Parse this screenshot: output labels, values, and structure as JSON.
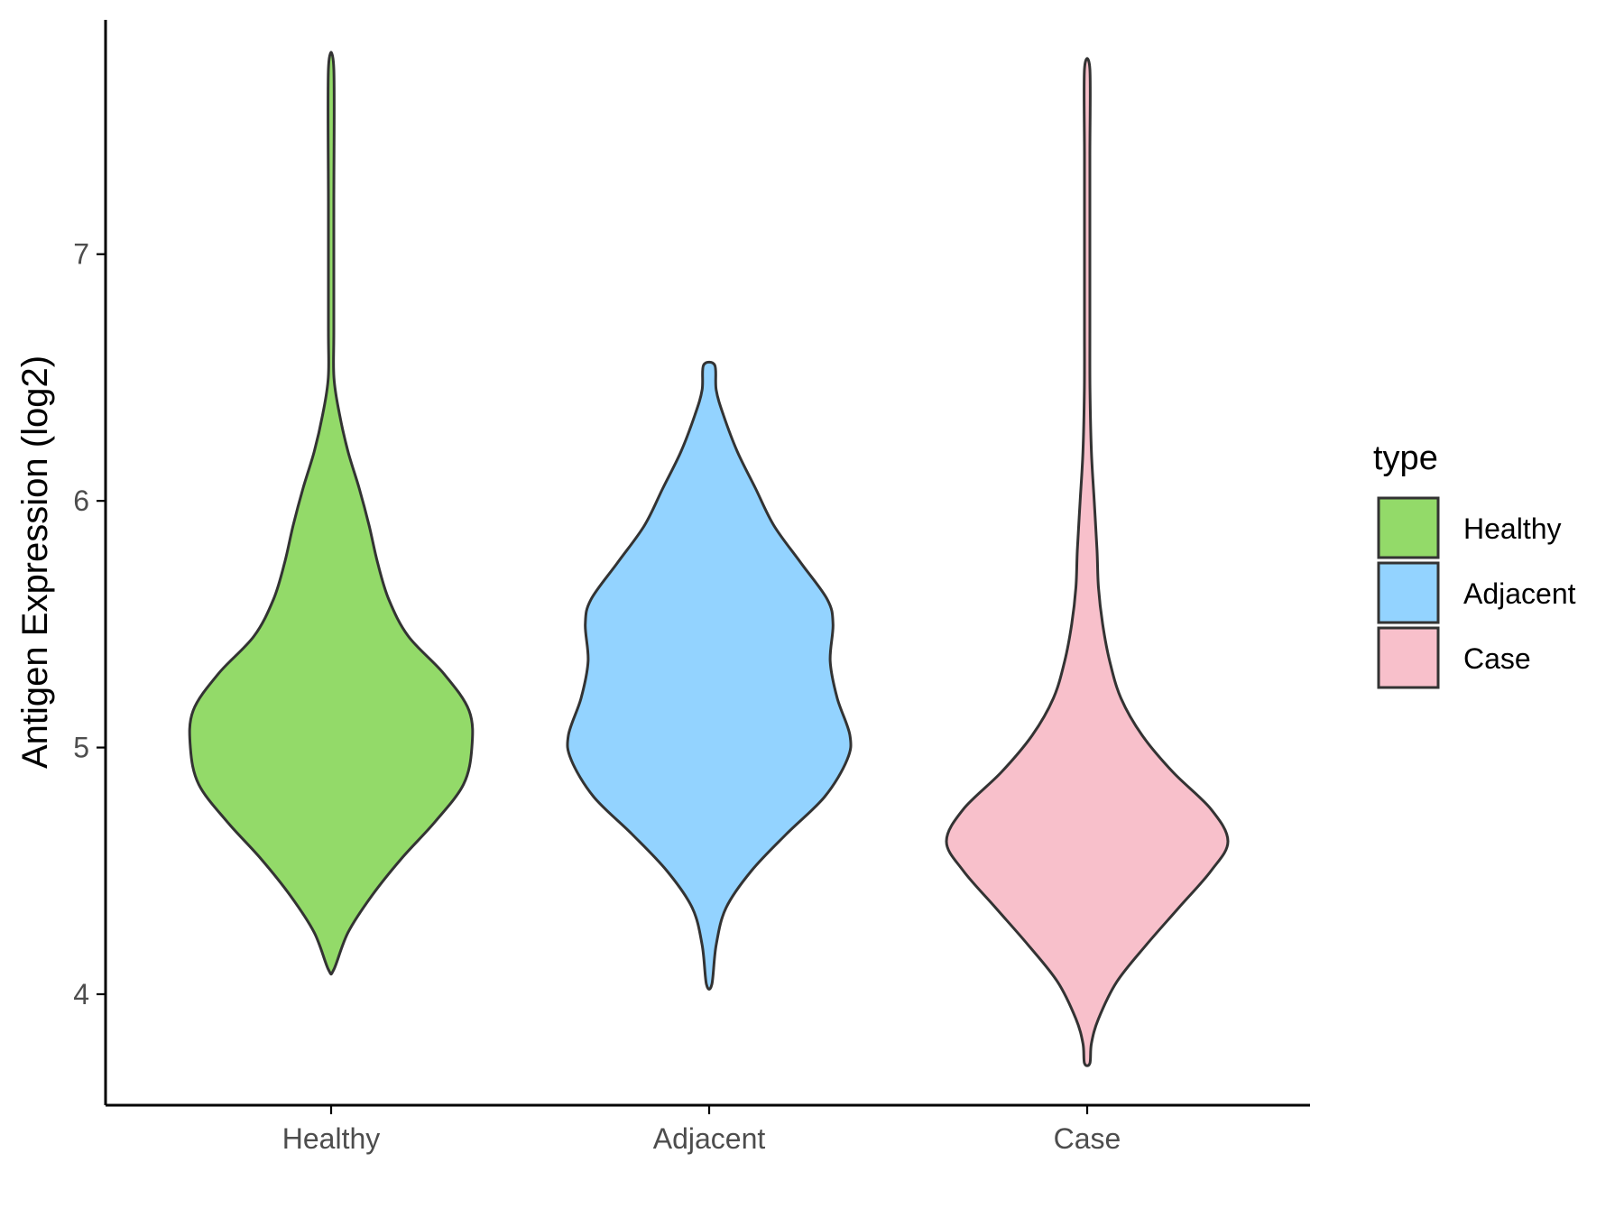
{
  "chart_data": {
    "type": "violin",
    "title": "",
    "xlabel": "",
    "ylabel": "Antigen Expression (log2)",
    "ylim": [
      3.55,
      7.95
    ],
    "y_ticks": [
      4,
      5,
      6,
      7
    ],
    "categories": [
      "Healthy",
      "Adjacent",
      "Case"
    ],
    "legend": {
      "title": "type",
      "position": "right",
      "entries": [
        "Healthy",
        "Adjacent",
        "Case"
      ]
    },
    "series": [
      {
        "name": "Healthy",
        "color": "#93DA69",
        "y_min": 4.1,
        "y_max": 7.75,
        "profile": [
          [
            4.1,
            0.01
          ],
          [
            4.25,
            0.12
          ],
          [
            4.4,
            0.29
          ],
          [
            4.55,
            0.5
          ],
          [
            4.7,
            0.74
          ],
          [
            4.85,
            0.94
          ],
          [
            5.0,
            1.0
          ],
          [
            5.15,
            0.98
          ],
          [
            5.3,
            0.8
          ],
          [
            5.45,
            0.55
          ],
          [
            5.6,
            0.41
          ],
          [
            5.75,
            0.33
          ],
          [
            5.9,
            0.27
          ],
          [
            6.05,
            0.2
          ],
          [
            6.2,
            0.12
          ],
          [
            6.35,
            0.06
          ],
          [
            6.5,
            0.02
          ],
          [
            6.7,
            0.01
          ],
          [
            7.2,
            0.005
          ],
          [
            7.75,
            0.01
          ]
        ]
      },
      {
        "name": "Adjacent",
        "color": "#93D3FF",
        "y_min": 4.04,
        "y_max": 6.55,
        "profile": [
          [
            4.04,
            0.01
          ],
          [
            4.2,
            0.05
          ],
          [
            4.35,
            0.12
          ],
          [
            4.5,
            0.3
          ],
          [
            4.65,
            0.55
          ],
          [
            4.8,
            0.82
          ],
          [
            4.95,
            0.98
          ],
          [
            5.05,
            1.0
          ],
          [
            5.2,
            0.91
          ],
          [
            5.35,
            0.86
          ],
          [
            5.5,
            0.88
          ],
          [
            5.6,
            0.84
          ],
          [
            5.75,
            0.65
          ],
          [
            5.9,
            0.46
          ],
          [
            6.05,
            0.33
          ],
          [
            6.2,
            0.2
          ],
          [
            6.35,
            0.1
          ],
          [
            6.45,
            0.05
          ],
          [
            6.55,
            0.04
          ]
        ]
      },
      {
        "name": "Case",
        "color": "#F8C0CB",
        "y_min": 3.72,
        "y_max": 7.75,
        "profile": [
          [
            3.72,
            0.005
          ],
          [
            3.8,
            0.03
          ],
          [
            3.9,
            0.08
          ],
          [
            4.05,
            0.21
          ],
          [
            4.2,
            0.42
          ],
          [
            4.35,
            0.65
          ],
          [
            4.5,
            0.88
          ],
          [
            4.62,
            1.0
          ],
          [
            4.75,
            0.88
          ],
          [
            4.9,
            0.61
          ],
          [
            5.05,
            0.39
          ],
          [
            5.2,
            0.24
          ],
          [
            5.35,
            0.16
          ],
          [
            5.5,
            0.11
          ],
          [
            5.65,
            0.08
          ],
          [
            5.8,
            0.07
          ],
          [
            6.0,
            0.05
          ],
          [
            6.2,
            0.03
          ],
          [
            6.45,
            0.02
          ],
          [
            6.7,
            0.015
          ],
          [
            7.0,
            0.008
          ],
          [
            7.4,
            0.004
          ],
          [
            7.75,
            0.003
          ]
        ]
      }
    ]
  }
}
